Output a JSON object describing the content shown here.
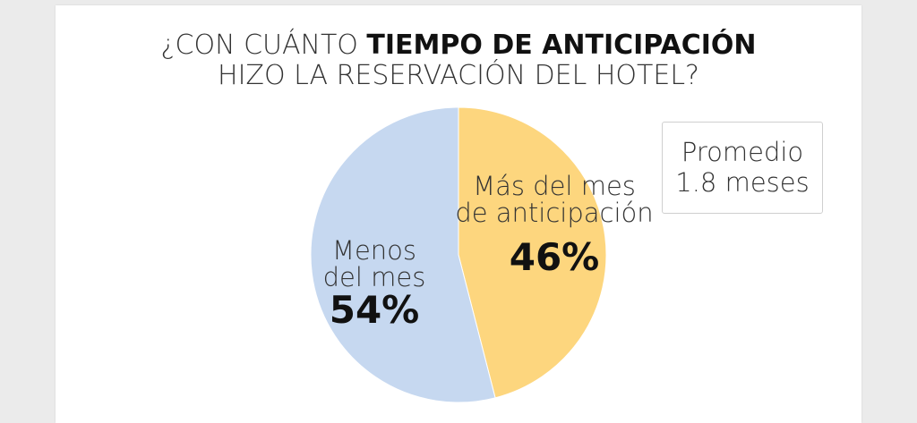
{
  "title": {
    "line1_light": "¿CON CUÁNTO ",
    "line1_bold": "TIEMPO DE ANTICIPACIÓN",
    "line2": "HIZO LA RESERVACIÓN DEL HOTEL?"
  },
  "note": {
    "line1": "Promedio",
    "line2": "1.8 meses"
  },
  "chart_data": {
    "type": "pie",
    "title": "¿CON CUÁNTO TIEMPO DE ANTICIPACIÓN HIZO LA RESERVACIÓN DEL HOTEL?",
    "slices": [
      {
        "label_lines": [
          "Más del mes",
          "de anticipación"
        ],
        "value": 46,
        "display": "46%",
        "color": "#fdd67e"
      },
      {
        "label_lines": [
          "Menos",
          "del mes"
        ],
        "value": 54,
        "display": "54%",
        "color": "#c6d8f0"
      }
    ],
    "start": "12 o'clock",
    "direction": "clockwise"
  }
}
